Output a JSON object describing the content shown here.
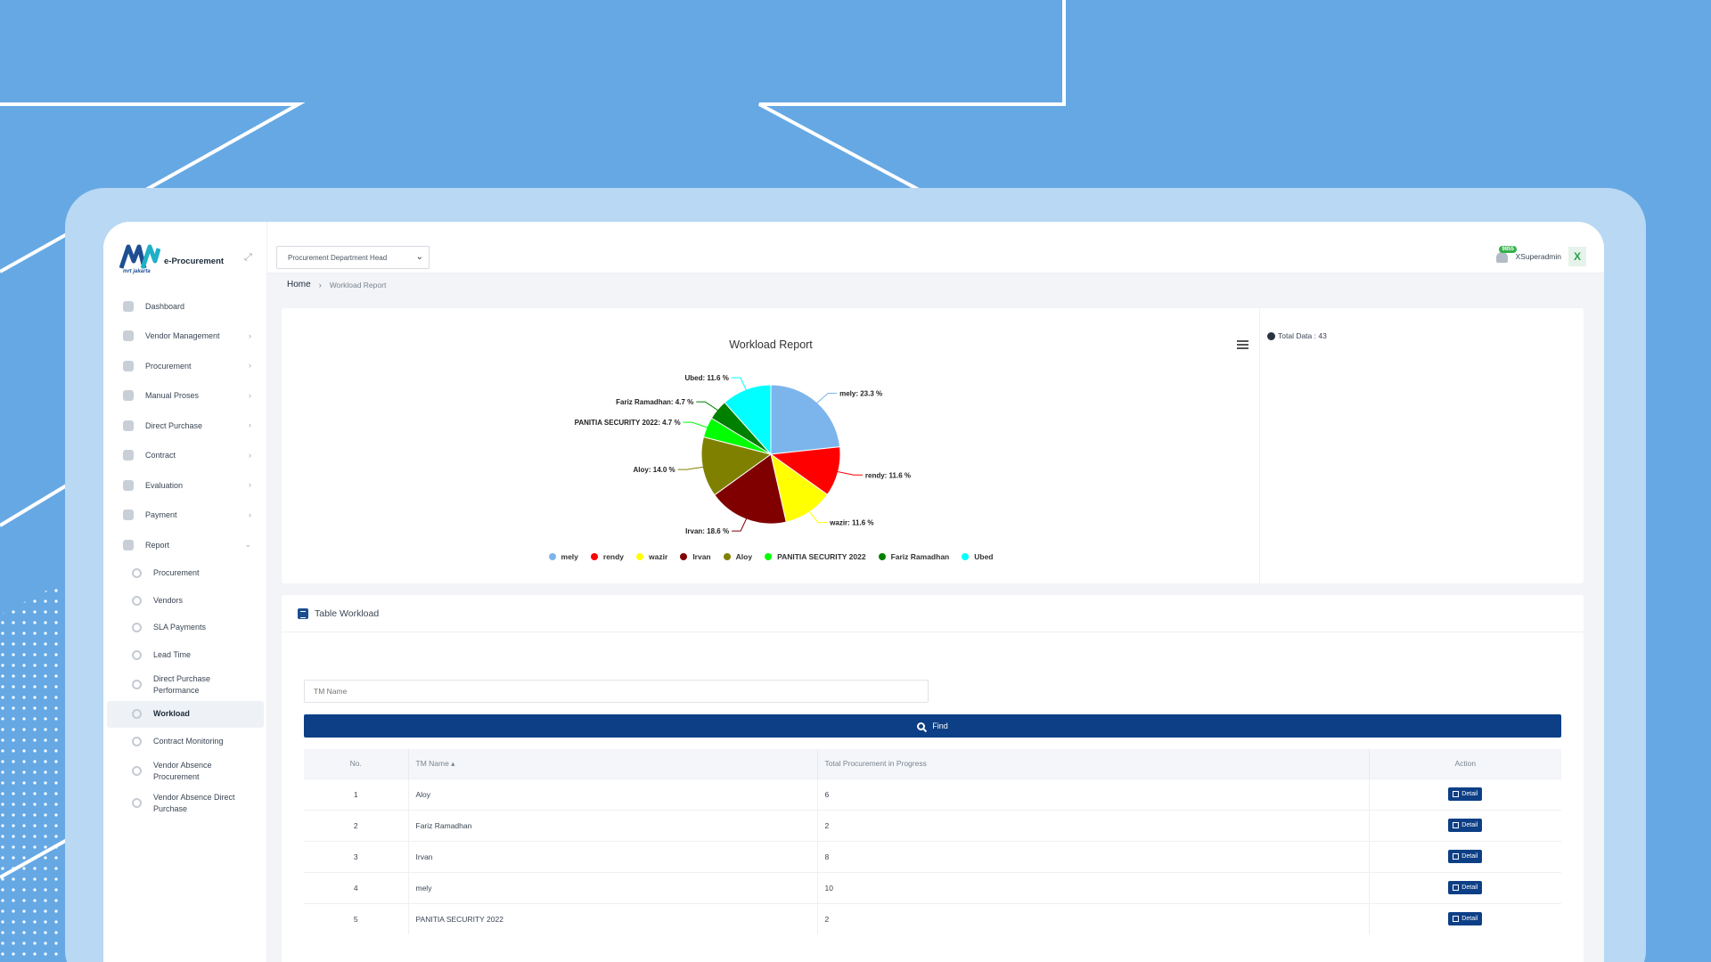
{
  "app": {
    "name": "e-Procurement",
    "logo_sub": "mrt jakarta"
  },
  "sidebar": {
    "items": [
      {
        "label": "Dashboard",
        "icon": "dashboard-icon"
      },
      {
        "label": "Vendor Management",
        "icon": "globe-icon",
        "chevron": true
      },
      {
        "label": "Procurement",
        "icon": "globe-icon",
        "chevron": true
      },
      {
        "label": "Manual Proses",
        "icon": "globe-icon",
        "chevron": true
      },
      {
        "label": "Direct Purchase",
        "icon": "globe-icon",
        "chevron": true
      },
      {
        "label": "Contract",
        "icon": "edit-icon",
        "chevron": true
      },
      {
        "label": "Evaluation",
        "icon": "clipboard-icon",
        "chevron": true
      },
      {
        "label": "Payment",
        "icon": "receipt-icon",
        "chevron": true
      },
      {
        "label": "Report",
        "icon": "report-icon",
        "chevron": true,
        "expanded": true
      }
    ],
    "report_sub": [
      {
        "label": "Procurement"
      },
      {
        "label": "Vendors"
      },
      {
        "label": "SLA Payments"
      },
      {
        "label": "Lead Time"
      },
      {
        "label": "Direct Purchase Performance"
      },
      {
        "label": "Workload",
        "active": true
      },
      {
        "label": "Contract Monitoring"
      },
      {
        "label": "Vendor Absence Procurement"
      },
      {
        "label": "Vendor Absence Direct Purchase"
      }
    ]
  },
  "topbar": {
    "role": "Procurement Department Head",
    "notification_count": "9855",
    "user_name": "XSuperadmin",
    "avatar_letter": "X"
  },
  "breadcrumb": {
    "home": "Home",
    "current": "Workload Report"
  },
  "chart_card": {
    "total_label": "Total Data : 43"
  },
  "chart_data": {
    "type": "pie",
    "title": "Workload Report",
    "legend_position": "bottom",
    "slices": [
      {
        "name": "mely",
        "value": 23.3,
        "label": "mely: 23.3 %",
        "color": "#7cb5ec"
      },
      {
        "name": "rendy",
        "value": 11.6,
        "label": "rendy: 11.6 %",
        "color": "#ff0000"
      },
      {
        "name": "wazir",
        "value": 11.6,
        "label": "wazir: 11.6 %",
        "color": "#ffff00"
      },
      {
        "name": "Irvan",
        "value": 18.6,
        "label": "Irvan: 18.6 %",
        "color": "#800000"
      },
      {
        "name": "Aloy",
        "value": 14.0,
        "label": "Aloy: 14.0 %",
        "color": "#808000"
      },
      {
        "name": "PANITIA SECURITY 2022",
        "value": 4.7,
        "label": "PANITIA SECURITY 2022: 4.7 %",
        "color": "#00ff00"
      },
      {
        "name": "Fariz Ramadhan",
        "value": 4.7,
        "label": "Fariz Ramadhan: 4.7 %",
        "color": "#008000"
      },
      {
        "name": "Ubed",
        "value": 11.6,
        "label": "Ubed: 11.6 %",
        "color": "#00ffff"
      }
    ]
  },
  "table_card": {
    "title": "Table Workload",
    "search_placeholder": "TM Name",
    "find_label": "Find",
    "columns": {
      "no": "No.",
      "name": "TM Name ▴",
      "total": "Total Procurement in Progress",
      "action": "Action"
    },
    "detail_label": "Detail",
    "rows": [
      {
        "no": "1",
        "name": "Aloy",
        "total": "6"
      },
      {
        "no": "2",
        "name": "Fariz Ramadhan",
        "total": "2"
      },
      {
        "no": "3",
        "name": "Irvan",
        "total": "8"
      },
      {
        "no": "4",
        "name": "mely",
        "total": "10"
      },
      {
        "no": "5",
        "name": "PANITIA SECURITY 2022",
        "total": "2"
      }
    ]
  }
}
